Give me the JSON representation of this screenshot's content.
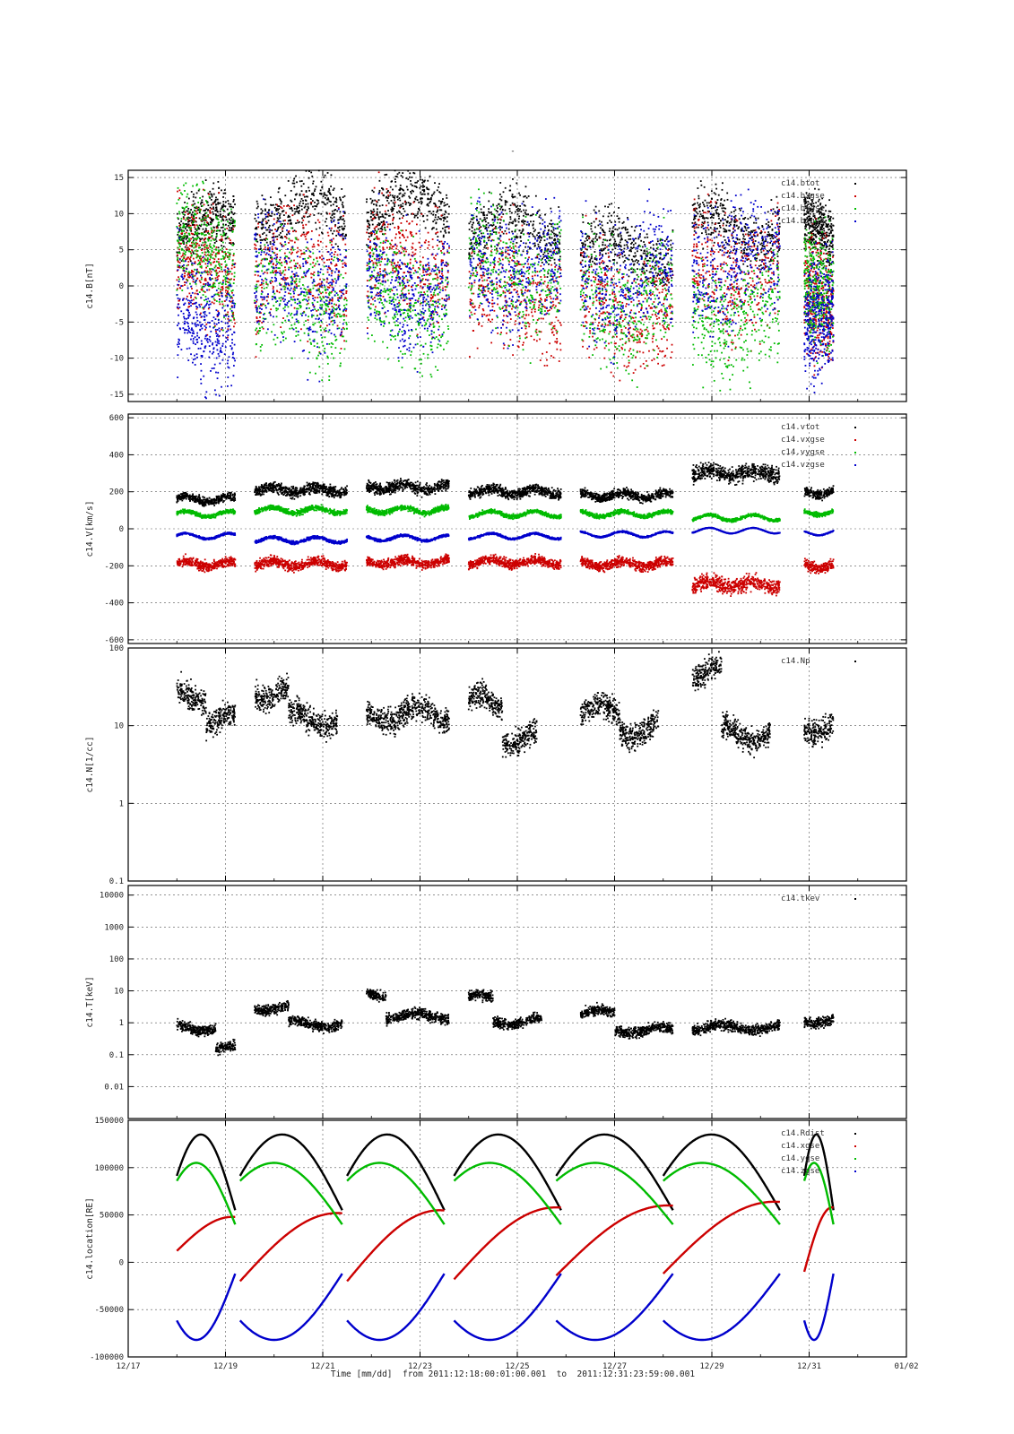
{
  "figure": {
    "top_mark": "-",
    "footer": {
      "prefix": "Time [mm/dd]",
      "from_label": "from",
      "from": "2011:12:18:00:01:00.001",
      "to_label": "to",
      "to": "2011:12:31:23:59:00.001"
    }
  },
  "chart_data": [
    {
      "type": "scatter",
      "ylabel": "c14.B[nT]",
      "ylim": [
        -16,
        16
      ],
      "yticks": [
        -15,
        -10,
        -5,
        0,
        5,
        10,
        15
      ],
      "legend_position": "top-right",
      "grid": true,
      "series": [
        {
          "name": "c14.btot",
          "color": "#000000"
        },
        {
          "name": "c14.bxgse",
          "color": "#cc0000"
        },
        {
          "name": "c14.bygse",
          "color": "#00bb00"
        },
        {
          "name": "c14.bzgse",
          "color": "#0000cc"
        }
      ]
    },
    {
      "type": "scatter",
      "ylabel": "c14.V[km/s]",
      "ylim": [
        -620,
        620
      ],
      "yticks": [
        -600,
        -400,
        -200,
        0,
        200,
        400,
        600
      ],
      "legend_position": "top-right",
      "grid": true,
      "series": [
        {
          "name": "c14.vtot",
          "color": "#000000",
          "values_day_range": [
            [
              18.0,
              19.2,
              160
            ],
            [
              19.6,
              21.5,
              210
            ],
            [
              21.9,
              23.6,
              225
            ],
            [
              24.0,
              25.9,
              200
            ],
            [
              26.3,
              28.2,
              180
            ],
            [
              28.6,
              30.4,
              300
            ],
            [
              30.9,
              31.5,
              200
            ]
          ]
        },
        {
          "name": "c14.vxgse",
          "color": "#cc0000",
          "values_day_range": [
            [
              18.0,
              19.2,
              -190
            ],
            [
              19.6,
              21.5,
              -190
            ],
            [
              21.9,
              23.6,
              -180
            ],
            [
              24.0,
              25.9,
              -180
            ],
            [
              26.3,
              28.2,
              -190
            ],
            [
              28.6,
              30.4,
              -300
            ],
            [
              30.9,
              31.5,
              -200
            ]
          ]
        },
        {
          "name": "c14.vygse",
          "color": "#00bb00",
          "values_day_range": [
            [
              18.0,
              19.2,
              80
            ],
            [
              19.6,
              21.5,
              100
            ],
            [
              21.9,
              23.6,
              100
            ],
            [
              24.0,
              25.9,
              80
            ],
            [
              26.3,
              28.2,
              80
            ],
            [
              28.6,
              30.4,
              60
            ],
            [
              30.9,
              31.5,
              90
            ]
          ]
        },
        {
          "name": "c14.vzgse",
          "color": "#0000cc",
          "values_day_range": [
            [
              18.0,
              19.2,
              -40
            ],
            [
              19.6,
              21.5,
              -60
            ],
            [
              21.9,
              23.6,
              -50
            ],
            [
              24.0,
              25.9,
              -40
            ],
            [
              26.3,
              28.2,
              -30
            ],
            [
              28.6,
              30.4,
              -10
            ],
            [
              30.9,
              31.5,
              -20
            ]
          ]
        }
      ]
    },
    {
      "type": "scatter",
      "ylabel": "c14.N[1/cc]",
      "yscale": "log",
      "ylim": [
        0.1,
        100
      ],
      "yticks": [
        "0.1",
        "1",
        "10",
        "100"
      ],
      "legend_position": "top-right",
      "grid": true,
      "series": [
        {
          "name": "c14.Np",
          "color": "#000000",
          "values_day_range": [
            [
              18.0,
              18.6,
              25
            ],
            [
              18.6,
              19.2,
              12
            ],
            [
              19.6,
              20.3,
              28
            ],
            [
              20.3,
              21.3,
              12
            ],
            [
              21.9,
              23.6,
              14
            ],
            [
              24.0,
              24.7,
              20
            ],
            [
              24.7,
              25.4,
              7
            ],
            [
              26.3,
              27.1,
              15
            ],
            [
              27.1,
              27.9,
              9
            ],
            [
              28.6,
              29.2,
              50
            ],
            [
              29.2,
              30.2,
              8
            ],
            [
              30.9,
              31.5,
              10
            ]
          ]
        }
      ]
    },
    {
      "type": "scatter",
      "ylabel": "c14.T[keV]",
      "yscale": "log",
      "ylim": [
        0.001,
        20000
      ],
      "yticks": [
        "0.01",
        "0.1",
        "1",
        "10",
        "100",
        "1000",
        "10000"
      ],
      "legend_position": "top-right",
      "grid": true,
      "series": [
        {
          "name": "c14.tkev",
          "color": "#000000",
          "values_day_range": [
            [
              18.0,
              18.8,
              0.7
            ],
            [
              18.8,
              19.2,
              0.15
            ],
            [
              19.6,
              20.3,
              3
            ],
            [
              20.3,
              21.4,
              0.9
            ],
            [
              21.9,
              22.3,
              8
            ],
            [
              22.3,
              23.6,
              1.6
            ],
            [
              24.0,
              24.5,
              6
            ],
            [
              24.5,
              25.5,
              1.1
            ],
            [
              26.3,
              27.0,
              2
            ],
            [
              27.0,
              28.2,
              0.6
            ],
            [
              28.6,
              30.4,
              0.7
            ],
            [
              30.9,
              31.5,
              1.2
            ]
          ]
        }
      ]
    },
    {
      "type": "line",
      "ylabel": "c14.location[RE]",
      "ylim": [
        -100000,
        150000
      ],
      "yticks": [
        -100000,
        -50000,
        0,
        50000,
        100000
      ],
      "top_tick_label": "150000",
      "legend_position": "top-right",
      "grid": true,
      "orbit_segments": [
        [
          18.0,
          19.2
        ],
        [
          19.3,
          21.4
        ],
        [
          21.5,
          23.5
        ],
        [
          23.7,
          25.9
        ],
        [
          25.8,
          28.2
        ],
        [
          28.0,
          30.4
        ],
        [
          30.9,
          31.5
        ]
      ],
      "series": [
        {
          "name": "c14.Rdist",
          "color": "#000000",
          "min": 55000,
          "max": 135000
        },
        {
          "name": "c14.xgse",
          "color": "#cc0000",
          "start_values": [
            12000,
            -20000,
            -20000,
            -18000,
            -14000,
            -12000,
            -10000
          ],
          "end_values": [
            48000,
            52000,
            55000,
            58000,
            60000,
            64000,
            58000
          ]
        },
        {
          "name": "c14.ygse",
          "color": "#00bb00",
          "min": 40000,
          "max": 105000
        },
        {
          "name": "c14.zgse",
          "color": "#0000cc",
          "min": -82000,
          "max": -12000
        }
      ]
    }
  ],
  "xaxis": {
    "range_days": [
      17,
      33
    ],
    "ticks": [
      {
        "day": 17,
        "label": "12/17"
      },
      {
        "day": 19,
        "label": "12/19"
      },
      {
        "day": 21,
        "label": "12/21"
      },
      {
        "day": 23,
        "label": "12/23"
      },
      {
        "day": 25,
        "label": "12/25"
      },
      {
        "day": 27,
        "label": "12/27"
      },
      {
        "day": 29,
        "label": "12/29"
      },
      {
        "day": 31,
        "label": "12/31"
      },
      {
        "day": 33,
        "label": "01/02"
      }
    ]
  },
  "data_gaps": [
    [
      19.2,
      19.6
    ],
    [
      21.5,
      21.9
    ],
    [
      23.6,
      24.0
    ],
    [
      25.9,
      26.3
    ],
    [
      28.2,
      28.6
    ],
    [
      30.4,
      30.9
    ]
  ]
}
